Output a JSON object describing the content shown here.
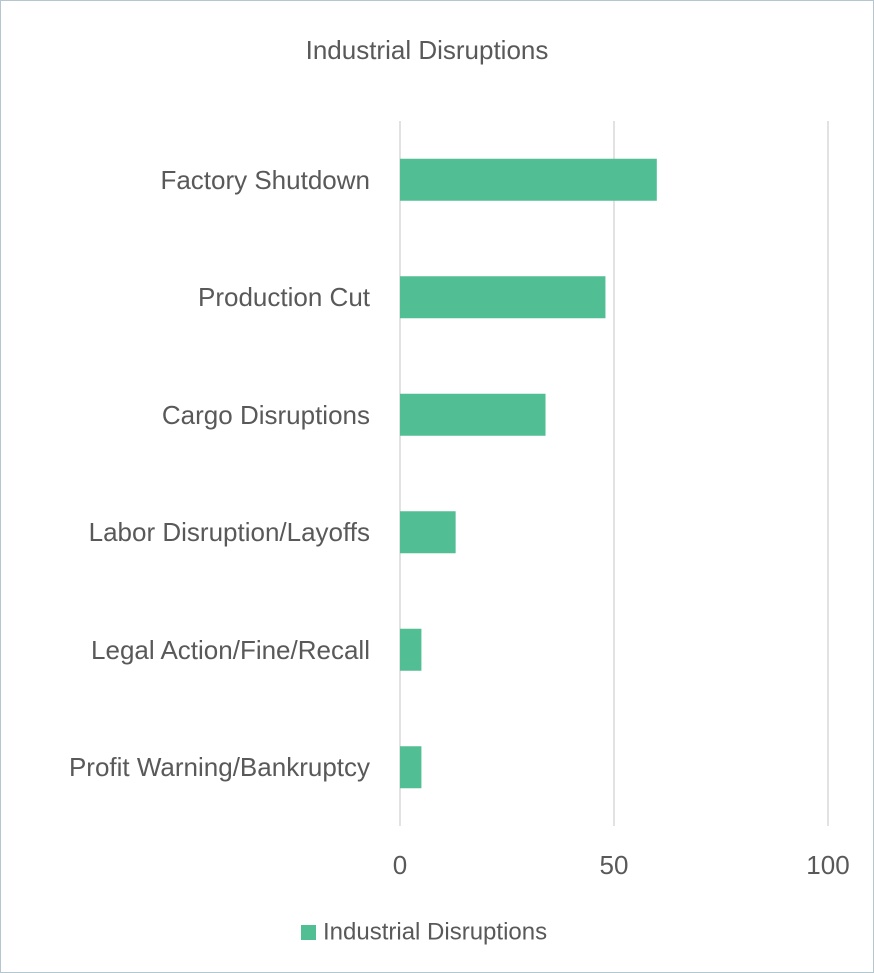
{
  "chart_data": {
    "type": "bar",
    "orientation": "horizontal",
    "title": "Industrial Disruptions",
    "categories": [
      "Factory Shutdown",
      "Production Cut",
      "Cargo Disruptions",
      "Labor Disruption/Layoffs",
      "Legal Action/Fine/Recall",
      "Profit Warning/Bankruptcy"
    ],
    "series": [
      {
        "name": "Industrial Disruptions",
        "color": "#52be93",
        "values": [
          60,
          48,
          34,
          13,
          5,
          5
        ]
      }
    ],
    "xlim": [
      0,
      100
    ],
    "xticks": [
      0,
      50,
      100
    ],
    "grid": true,
    "legend": "bottom"
  }
}
